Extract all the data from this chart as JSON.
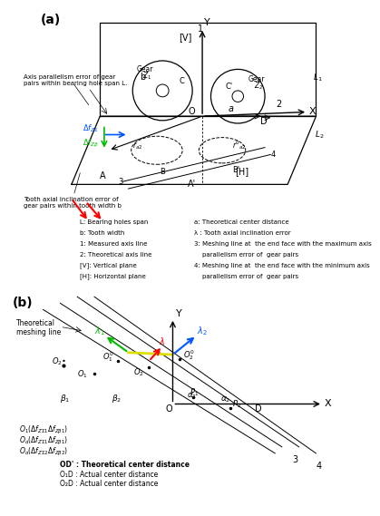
{
  "panel_a_label": "(a)",
  "panel_b_label": "(b)",
  "bg_color": "#ffffff",
  "line_color": "#000000",
  "green_color": "#00bb00",
  "blue_color": "#0055ff",
  "red_color": "#ff0000",
  "yellow_color": "#dddd00",
  "legend_a_left": [
    "L: Bearing holes span",
    "b: Tooth width",
    "1: Measured axis line",
    "2: Theoretical axis line",
    "[V]: Vertical plane",
    "[H]: Horizontal plane"
  ],
  "legend_a_right": [
    "a: Theoretical center distance",
    "λ : Tooth axial inclination error",
    "3: Meshing line at  the end face with the maximum axis",
    "    parallelism error of  gear pairs",
    "4: Meshing line at  the end face with the minimum axis",
    "    parallelism error of  gear pairs"
  ],
  "legend_b": [
    "OD’ : Theoretical center distance",
    "O₁D : Actual center distance",
    "O₂D : Actual center distance"
  ]
}
